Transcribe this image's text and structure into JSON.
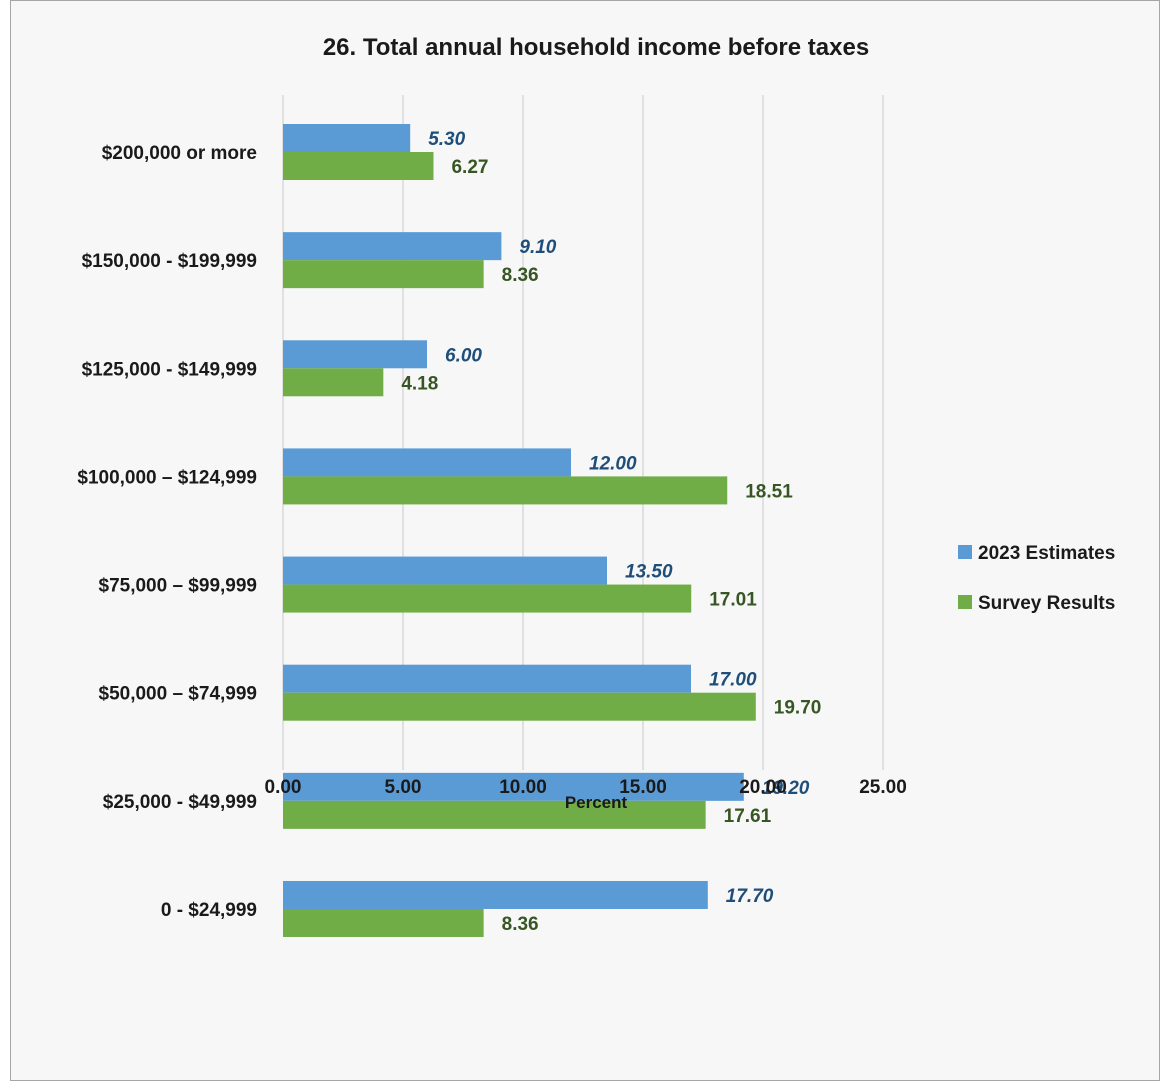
{
  "chart_data": {
    "type": "bar",
    "orientation": "horizontal",
    "title": "26. Total annual household income before taxes",
    "xlabel": "Percent",
    "ylabel": "",
    "xlim": [
      0,
      25
    ],
    "x_ticks": [
      "0.00",
      "5.00",
      "10.00",
      "15.00",
      "20.00",
      "25.00"
    ],
    "grid": true,
    "legend_position": "right",
    "categories": [
      "$200,000 or more",
      "$150,000 - $199,999",
      "$125,000 - $149,999",
      "$100,000 – $124,999",
      "$75,000 – $99,999",
      "$50,000 – $74,999",
      "$25,000 - $49,999",
      "0 - $24,999"
    ],
    "series": [
      {
        "name": "2023 Estimates",
        "color": "#5b9bd5",
        "label_color": "#1f4e79",
        "label_style": "italic",
        "values": [
          5.3,
          9.1,
          6.0,
          12.0,
          13.5,
          17.0,
          19.2,
          17.7
        ],
        "labels": [
          "5.30",
          "9.10",
          "6.00",
          "12.00",
          "13.50",
          "17.00",
          "19.20",
          "17.70"
        ]
      },
      {
        "name": "Survey Results",
        "color": "#70ad47",
        "label_color": "#375623",
        "label_style": "normal",
        "values": [
          6.27,
          8.36,
          4.18,
          18.51,
          17.01,
          19.7,
          17.61,
          8.36
        ],
        "labels": [
          "6.27",
          "8.36",
          "4.18",
          "18.51",
          "17.01",
          "19.70",
          "17.61",
          "8.36"
        ]
      }
    ]
  }
}
